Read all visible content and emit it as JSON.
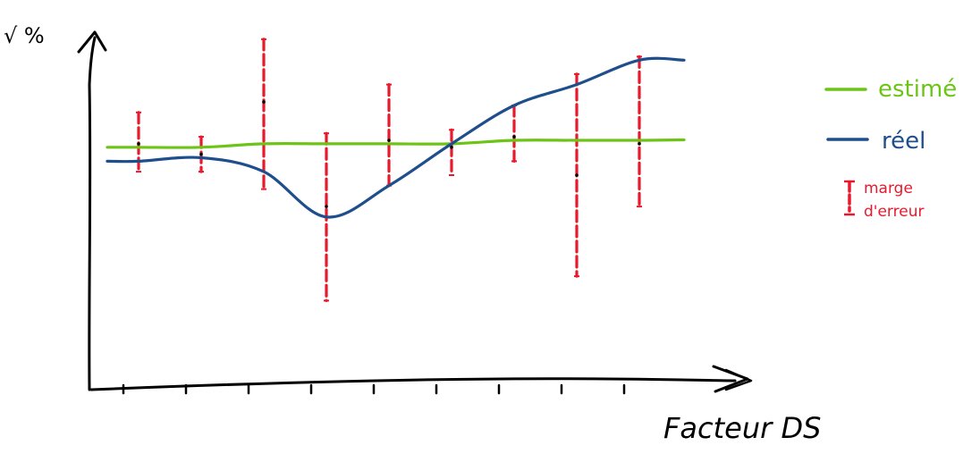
{
  "chart_data": {
    "type": "line",
    "title": "",
    "ylabel": "√ %",
    "xlabel": "Facteur DS",
    "grid": false,
    "legend_position": "right",
    "x": [
      1,
      2,
      3,
      4,
      5,
      6,
      7,
      8,
      9
    ],
    "ylim": [
      0,
      100
    ],
    "series": [
      {
        "name": "estimé",
        "color": "#6cc417",
        "values": [
          68,
          68,
          69,
          69,
          69,
          69,
          70,
          70,
          70
        ]
      },
      {
        "name": "réel",
        "color": "#1f4e8c",
        "values": [
          64,
          65,
          61,
          48,
          57,
          69,
          80,
          86,
          93
        ]
      }
    ],
    "error_bars": {
      "name": "marge d'erreur",
      "color": "#e8192c",
      "center": [
        69,
        66,
        81,
        51,
        70,
        68,
        71,
        60,
        69
      ],
      "low": [
        61,
        61,
        56,
        24,
        57,
        60,
        64,
        31,
        51
      ],
      "high": [
        78,
        71,
        99,
        72,
        86,
        73,
        80,
        89,
        94
      ]
    }
  }
}
